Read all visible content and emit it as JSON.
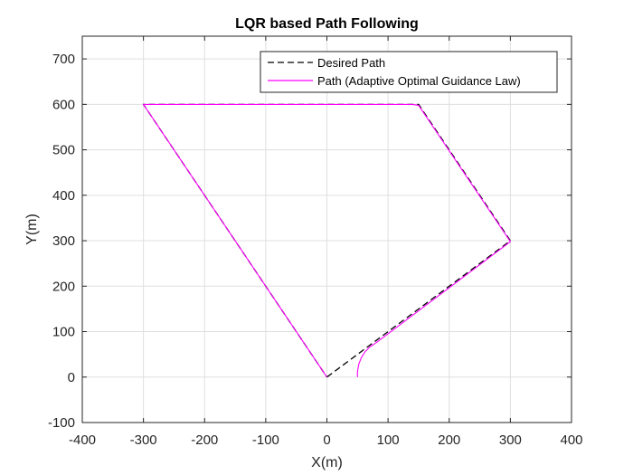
{
  "chart_data": {
    "type": "line",
    "title": "LQR based Path Following",
    "xlabel": "X(m)",
    "ylabel": "Y(m)",
    "xlim": [
      -400,
      400
    ],
    "ylim": [
      -100,
      750
    ],
    "xticks": [
      "-400",
      "-300",
      "-200",
      "-100",
      "0",
      "100",
      "200",
      "300",
      "400"
    ],
    "yticks": [
      "-100",
      "0",
      "100",
      "200",
      "300",
      "400",
      "500",
      "600",
      "700"
    ],
    "grid": true,
    "legend_position": "top-right",
    "series": [
      {
        "name": "Desired Path",
        "color": "#000000",
        "style": "dashed",
        "x": [
          0,
          300,
          150,
          -300,
          0
        ],
        "y": [
          0,
          300,
          600,
          600,
          0
        ]
      },
      {
        "name": "Path (Adaptive Optimal Guidance Law)",
        "color": "#ff00ff",
        "style": "solid",
        "x": [
          50,
          50,
          52,
          56,
          62,
          70,
          80,
          300,
          150,
          140,
          -300,
          0
        ],
        "y": [
          0,
          12,
          28,
          42,
          55,
          66,
          75,
          298,
          598,
          600,
          600,
          0
        ]
      }
    ]
  }
}
